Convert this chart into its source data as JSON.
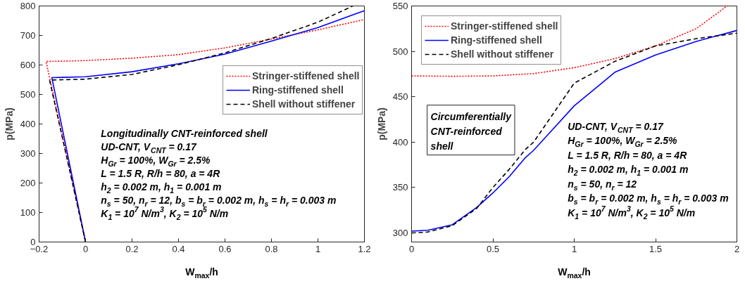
{
  "chart_data": [
    {
      "type": "line",
      "xlabel": "W$_{max}$/h",
      "ylabel": "p(MPa)",
      "xlim": [
        -0.2,
        1.2
      ],
      "ylim": [
        0,
        800
      ],
      "xticks": [
        -0.2,
        0,
        0.2,
        0.4,
        0.6,
        0.8,
        1,
        1.2
      ],
      "yticks": [
        0,
        100,
        200,
        300,
        400,
        500,
        600,
        700,
        800
      ],
      "grid": false,
      "legend": "right",
      "marker": "none",
      "series": [
        {
          "name": "Stringer-stiffened shell",
          "color": "#ff0000",
          "line_style": "dotted",
          "x": [
            0,
            -0.17,
            -0.1,
            0,
            0.2,
            0.4,
            0.6,
            0.8,
            1.0,
            1.2
          ],
          "values": [
            0,
            612,
            613,
            615,
            623,
            635,
            658,
            688,
            719,
            754
          ]
        },
        {
          "name": "Ring-stiffened shell",
          "color": "#0000ff",
          "line_style": "solid",
          "x": [
            0,
            -0.145,
            -0.1,
            0,
            0.2,
            0.4,
            0.6,
            0.8,
            1.0,
            1.2
          ],
          "values": [
            0,
            557,
            558,
            560,
            577,
            604,
            637,
            681,
            727,
            784
          ]
        },
        {
          "name": "Shell without stiffener",
          "color": "#000000",
          "line_style": "dashed",
          "x": [
            0,
            -0.155,
            -0.1,
            0,
            0.2,
            0.4,
            0.6,
            0.8,
            1.0,
            1.15
          ],
          "values": [
            0,
            549,
            550,
            552,
            568,
            601,
            641,
            690,
            745,
            800
          ]
        }
      ],
      "annotations": [
        "Longitudinally CNT-reinforced shell",
        "UD-CNT, V$_{CNT}$ = 0.17",
        "H$_{Gr}$ = 100%, W$_{Gr}$ = 2.5%",
        "L = 1.5 R, R/h = 80, a = 4R",
        "h$_{2}$ = 0.002 m, h$_{1}$ = 0.001 m",
        "n$_{s}$ = 50, n$_{r}$ = 12, b$_{s}$ = b$_{r}$ = 0.002 m, h$_{s}$ = h$_{r}$ = 0.003 m",
        "K$_{1}$ = 10$^{7}$ N/m$^{3}$, K$_{2}$ = 10$^{5}$ N/m"
      ]
    },
    {
      "type": "line",
      "xlabel": "W$_{max}$/h",
      "ylabel": "p(MPa)",
      "xlim": [
        0,
        2
      ],
      "ylim": [
        290,
        550
      ],
      "xticks": [
        0,
        0.5,
        1,
        1.5,
        2
      ],
      "yticks": [
        300,
        350,
        400,
        450,
        500,
        550
      ],
      "grid": false,
      "legend": "top left",
      "marker": "none",
      "series": [
        {
          "name": "Stringer-stiffened shell",
          "color": "#ff0000",
          "line_style": "dotted",
          "x": [
            0,
            0.25,
            0.5,
            0.75,
            1,
            1.25,
            1.5,
            1.75,
            1.94
          ],
          "values": [
            473,
            472.5,
            473,
            475.5,
            482,
            492,
            506,
            525,
            550
          ]
        },
        {
          "name": "Ring-stiffened shell",
          "color": "#0000ff",
          "line_style": "solid",
          "x": [
            0,
            0.1,
            0.25,
            0.4,
            0.5,
            0.6,
            0.7,
            0.75,
            1,
            1.25,
            1.5,
            1.75,
            2
          ],
          "values": [
            302,
            303,
            309,
            328,
            344,
            362,
            383,
            391,
            440,
            477,
            496,
            511,
            523
          ]
        },
        {
          "name": "Shell without stiffener",
          "color": "#000000",
          "line_style": "dashed",
          "x": [
            0,
            0.1,
            0.25,
            0.4,
            0.5,
            0.6,
            0.7,
            0.75,
            1,
            1.25,
            1.5,
            1.75,
            2
          ],
          "values": [
            300,
            301,
            308,
            327,
            350,
            370,
            392,
            400,
            465,
            489,
            506,
            514,
            520
          ]
        }
      ],
      "annotations": [
        "Circumferentially\nCNT-reinforced\nshell",
        "UD-CNT, V$_{CNT}$ = 0.17",
        "H$_{Gr}$ = 100%, W$_{Gr}$ = 2.5%",
        "L = 1.5 R, R/h = 80, a = 4R",
        "h$_{2}$ = 0.002 m, h$_{1}$ = 0.001 m",
        "n$_{s}$ = 50, n$_{r}$ = 12",
        "b$_{s}$ = b$_{r}$ = 0.002 m, h$_{s}$ = h$_{r}$ = 0.003 m",
        "K$_{1}$ = 10$^{7}$ N/m$^{3}$, K$_{2}$ = 10$^{5}$ N/m"
      ]
    }
  ]
}
